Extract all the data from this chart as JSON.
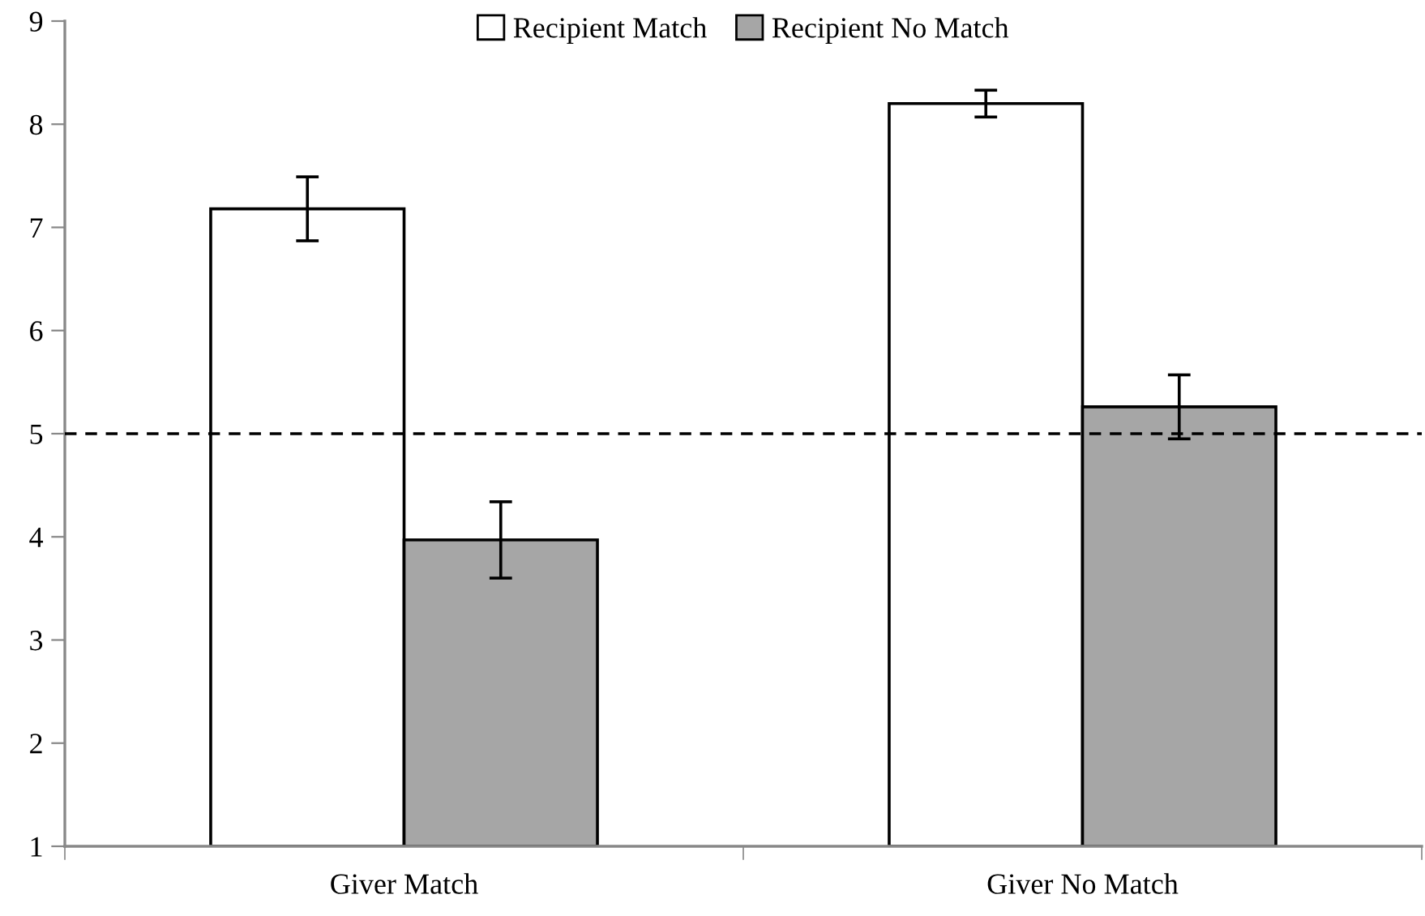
{
  "chart_data": {
    "type": "bar",
    "categories": [
      "Giver Match",
      "Giver No Match"
    ],
    "series": [
      {
        "name": "Recipient Match",
        "color": "#ffffff",
        "values": [
          7.18,
          8.2
        ],
        "errors": [
          0.31,
          0.13
        ]
      },
      {
        "name": "Recipient No Match",
        "color": "#a6a6a6",
        "values": [
          3.97,
          5.26
        ],
        "errors": [
          0.37,
          0.31
        ]
      }
    ],
    "ylim": [
      1,
      9
    ],
    "yticks": [
      1,
      2,
      3,
      4,
      5,
      6,
      7,
      8,
      9
    ],
    "ref_lines": [
      {
        "axis": "y",
        "value": 5,
        "line_style": "dashed",
        "color": "#000000"
      }
    ],
    "legend": "top",
    "grid": false
  }
}
